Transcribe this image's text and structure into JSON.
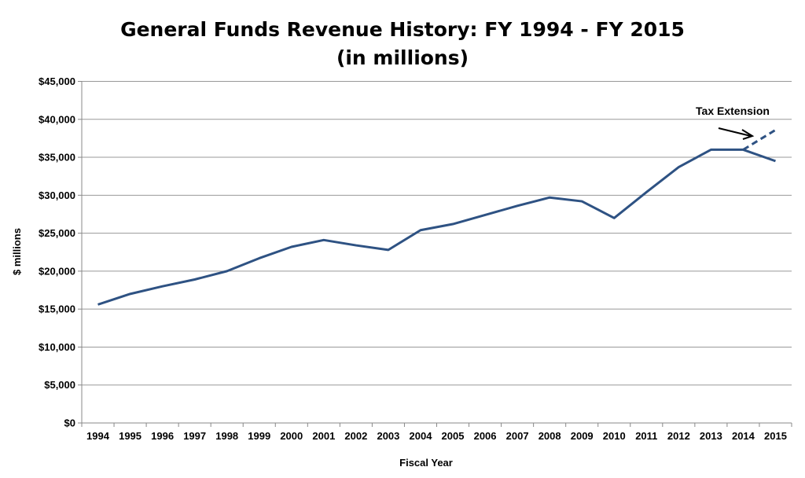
{
  "chart_data": {
    "type": "line",
    "title": "General Funds Revenue History: FY 1994 - FY 2015",
    "subtitle": "(in millions)",
    "xlabel": "Fiscal Year",
    "ylabel": "$ millions",
    "ylim": [
      0,
      45000
    ],
    "yticks": [
      0,
      5000,
      10000,
      15000,
      20000,
      25000,
      30000,
      35000,
      40000,
      45000
    ],
    "ytick_labels": [
      "$0",
      "$5,000",
      "$10,000",
      "$15,000",
      "$20,000",
      "$25,000",
      "$30,000",
      "$35,000",
      "$40,000",
      "$45,000"
    ],
    "grid": true,
    "categories": [
      "1994",
      "1995",
      "1996",
      "1997",
      "1998",
      "1999",
      "2000",
      "2001",
      "2002",
      "2003",
      "2004",
      "2005",
      "2006",
      "2007",
      "2008",
      "2009",
      "2010",
      "2011",
      "2012",
      "2013",
      "2014",
      "2015"
    ],
    "series": [
      {
        "values": [
          15600,
          17000,
          18000,
          18900,
          20000,
          21700,
          23200,
          24100,
          23400,
          22800,
          25400,
          26200,
          27400,
          28600,
          29700,
          29200,
          27000,
          30400,
          33700,
          36000,
          36000,
          34500
        ],
        "color": "#2E5283",
        "style": "solid"
      },
      {
        "x": [
          "2014",
          "2015"
        ],
        "values": [
          36000,
          38600
        ],
        "color": "#2E5283",
        "style": "dashed"
      }
    ],
    "annotations": [
      {
        "text": "Tax Extension",
        "arrow_to": "2014-2015 dashed line"
      }
    ]
  }
}
